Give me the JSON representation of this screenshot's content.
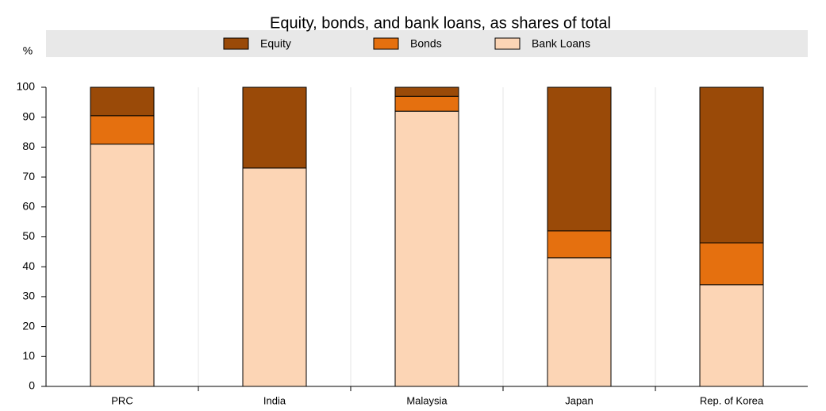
{
  "chart_data": {
    "type": "stacked_bar",
    "title": "Equity, bonds, and bank loans, as shares of total",
    "y_label": "%",
    "categories": [
      "PRC",
      "India",
      "Malaysia",
      "Japan",
      "Rep. of Korea"
    ],
    "series": [
      {
        "name": "Equity",
        "color": "#9a4a08",
        "values": [
          9.5,
          27,
          3,
          48,
          52
        ]
      },
      {
        "name": "Bonds",
        "color": "#e5700f",
        "values": [
          9.5,
          0,
          5,
          9,
          14
        ]
      },
      {
        "name": "Bank Loans",
        "color": "#fcd5b5",
        "values": [
          81,
          73,
          92,
          43,
          34
        ]
      }
    ],
    "ylim": [
      0,
      100
    ],
    "yticks": [
      0,
      10,
      20,
      30,
      40,
      50,
      60,
      70,
      80,
      90,
      100
    ]
  }
}
